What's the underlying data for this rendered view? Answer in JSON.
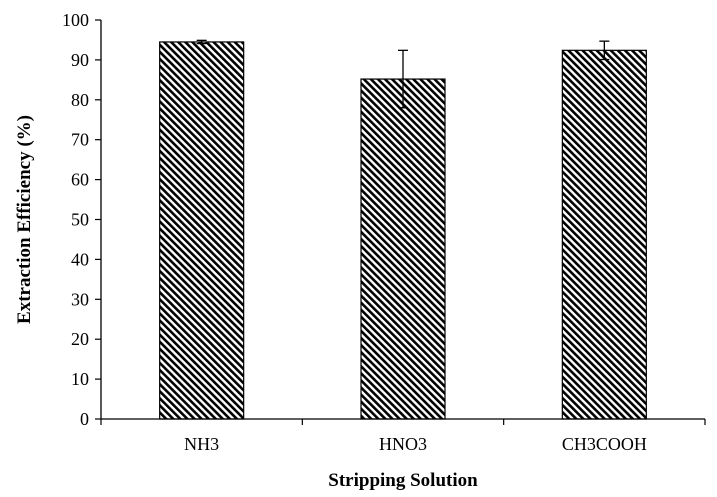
{
  "chart_data": {
    "type": "bar",
    "title": "",
    "xlabel": "Stripping Solution",
    "ylabel": "Extraction Efficiency (%)",
    "categories": [
      "NH3",
      "HNO3",
      "CH3COOH"
    ],
    "values": [
      94.5,
      85.2,
      92.4
    ],
    "errors": [
      0.4,
      7.2,
      2.3
    ],
    "ylim": [
      0,
      100
    ],
    "yticks": [
      0,
      10,
      20,
      30,
      40,
      50,
      60,
      70,
      80,
      90,
      100
    ],
    "grid": false,
    "legend": "none",
    "bar_pattern": "diagonal-hatch",
    "colors": {
      "bar_fill": "#ffffff",
      "hatch": "#000000",
      "axis": "#000000"
    }
  }
}
